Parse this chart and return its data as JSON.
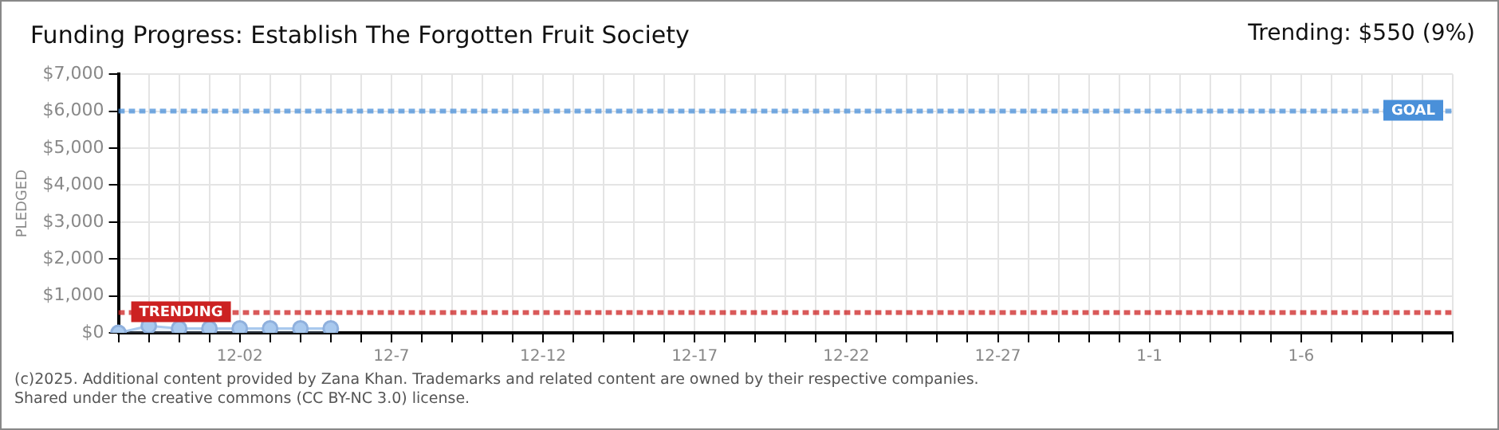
{
  "chart_data": {
    "type": "area",
    "title": "Funding Progress: Establish The Forgotten Fruit Society",
    "subtitle": "Trending:  $550 (9%)",
    "ylabel": "PLEDGED",
    "categories": [
      null,
      null,
      null,
      null,
      "12-02",
      null,
      null,
      null,
      null,
      "12-7",
      null,
      null,
      null,
      null,
      "12-12",
      null,
      null,
      null,
      null,
      "12-17",
      null,
      null,
      null,
      null,
      "12-22",
      null,
      null,
      null,
      null,
      "12-27",
      null,
      null,
      null,
      null,
      "1-1",
      null,
      null,
      null,
      null,
      "1-6",
      null,
      null,
      null,
      null,
      null
    ],
    "series": [
      {
        "color": "#a9c9ee",
        "values": [
          0,
          190,
          120,
          120,
          120,
          120,
          120,
          120,
          null,
          null,
          null,
          null,
          null,
          null,
          null,
          null,
          null,
          null,
          null,
          null,
          null,
          null,
          null,
          null,
          null,
          null,
          null,
          null,
          null,
          null,
          null,
          null,
          null,
          null,
          null,
          null,
          null,
          null,
          null,
          null,
          null,
          null,
          null,
          null,
          null
        ]
      }
    ],
    "ylim": [
      0,
      7000
    ],
    "yticks": [
      {
        "value": 0,
        "label": "$0"
      },
      {
        "value": 1000,
        "label": "$1,000"
      },
      {
        "value": 2000,
        "label": "$2,000"
      },
      {
        "value": 3000,
        "label": "$3,000"
      },
      {
        "value": 4000,
        "label": "$4,000"
      },
      {
        "value": 5000,
        "label": "$5,000"
      },
      {
        "value": 6000,
        "label": "$6,000"
      },
      {
        "value": 7000,
        "label": "$7,000"
      }
    ],
    "ref_lines": [
      {
        "axis": "y",
        "value": 6000,
        "label": "GOAL",
        "color": "#4a90d9",
        "line_style": "dotted"
      },
      {
        "axis": "y",
        "value": 550,
        "label": "TRENDING",
        "color": "#cc2222",
        "line_style": "dotted"
      }
    ],
    "grid": true,
    "legend": false,
    "marker": "circle",
    "line_style": "solid",
    "annotations": [
      "(c)2025. Additional content provided by Zana Khan. Trademarks and related content are owned by their respective companies.",
      "Shared under the creative commons (CC BY-NC 3.0) license."
    ]
  }
}
